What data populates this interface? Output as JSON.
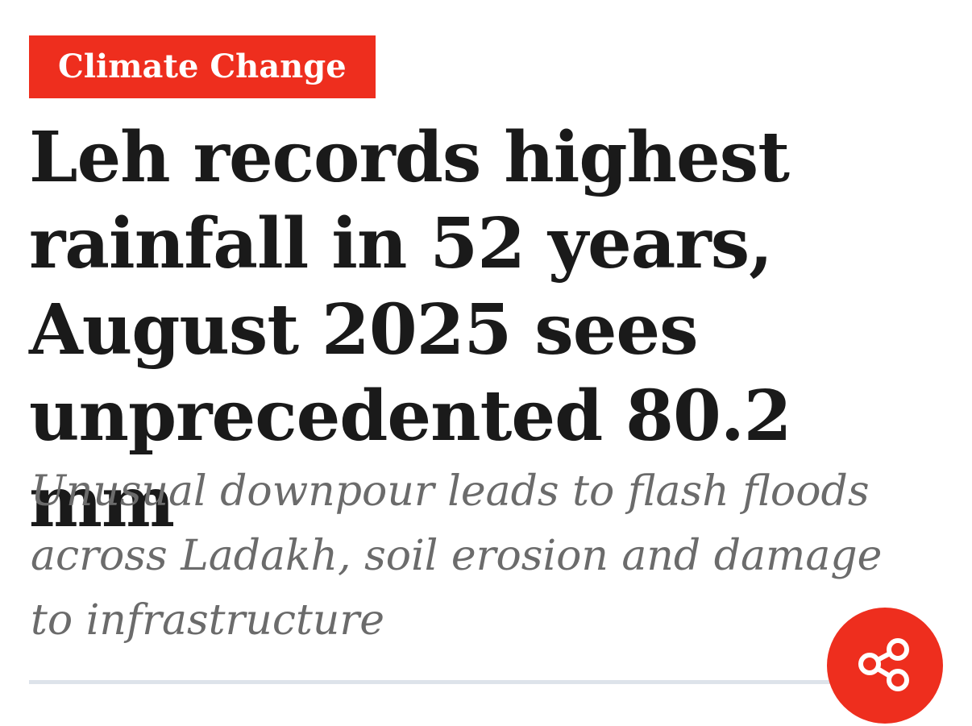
{
  "tag": "Climate Change",
  "headline": "Leh records highest rainfall in 52 years, August 2025 sees unprecedented 80.2 mm",
  "subheadline": "Unusual downpour leads to flash floods across Ladakh, soil erosion and damage to infrastructure"
}
